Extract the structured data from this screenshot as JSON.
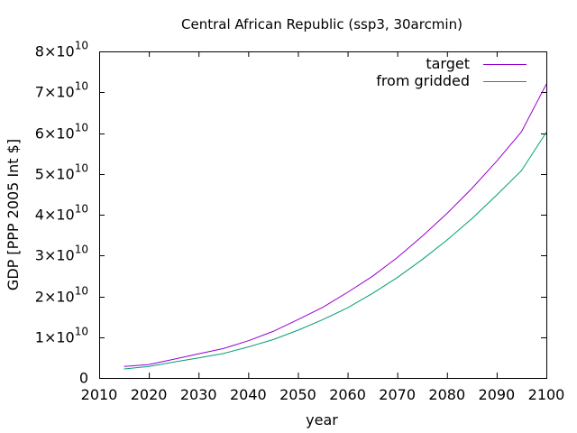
{
  "chart_data": {
    "type": "line",
    "title": "Central African Republic (ssp3, 30arcmin)",
    "xlabel": "year",
    "ylabel": "GDP [PPP 2005 Int $]",
    "xlim": [
      2010,
      2100
    ],
    "ylim": [
      0,
      80000000000
    ],
    "x_ticks": [
      "2010",
      "2020",
      "2030",
      "2040",
      "2050",
      "2060",
      "2070",
      "2080",
      "2090",
      "2100"
    ],
    "x_tick_values": [
      2010,
      2020,
      2030,
      2040,
      2050,
      2060,
      2070,
      2080,
      2090,
      2100
    ],
    "y_tick_values": [
      0,
      10000000000,
      20000000000,
      30000000000,
      40000000000,
      50000000000,
      60000000000,
      70000000000,
      80000000000
    ],
    "y_ticks": [
      {
        "mantissa": "0",
        "exponent": ""
      },
      {
        "mantissa": "1×10",
        "exponent": "10"
      },
      {
        "mantissa": "2×10",
        "exponent": "10"
      },
      {
        "mantissa": "3×10",
        "exponent": "10"
      },
      {
        "mantissa": "4×10",
        "exponent": "10"
      },
      {
        "mantissa": "5×10",
        "exponent": "10"
      },
      {
        "mantissa": "6×10",
        "exponent": "10"
      },
      {
        "mantissa": "7×10",
        "exponent": "10"
      },
      {
        "mantissa": "8×10",
        "exponent": "10"
      }
    ],
    "grid": false,
    "legend_position": "top-right",
    "x": [
      2015,
      2020,
      2025,
      2030,
      2035,
      2040,
      2045,
      2050,
      2055,
      2060,
      2065,
      2070,
      2075,
      2080,
      2085,
      2090,
      2095,
      2100
    ],
    "series": [
      {
        "name": "target",
        "color": "#9400d3",
        "values": [
          2800000000,
          3300000000,
          4600000000,
          5900000000,
          7200000000,
          9100000000,
          11400000000,
          14300000000,
          17300000000,
          21000000000,
          24900000000,
          29500000000,
          34700000000,
          40300000000,
          46400000000,
          53100000000,
          60300000000,
          72000000000
        ]
      },
      {
        "name": "from gridded",
        "color": "#009e73",
        "values": [
          2200000000,
          2800000000,
          3900000000,
          4900000000,
          6000000000,
          7600000000,
          9400000000,
          11700000000,
          14300000000,
          17200000000,
          20700000000,
          24600000000,
          29000000000,
          33800000000,
          39000000000,
          44800000000,
          50800000000,
          60200000000
        ]
      }
    ]
  }
}
